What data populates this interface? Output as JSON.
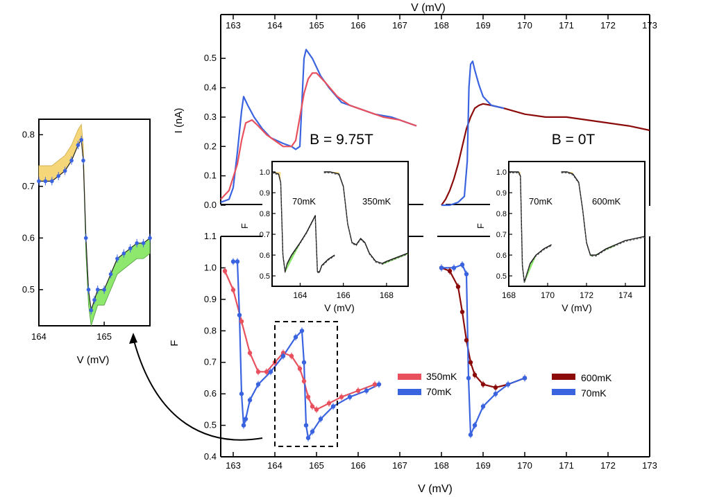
{
  "figure": {
    "top_xlabel": "V (mV)",
    "bottom_xlabel": "V (mV)",
    "top_ylabel": "I (nA)",
    "bottom_ylabel": "F",
    "zoom_xlabel": "V (mV)",
    "inset_xlabel": "V (mV)",
    "inset_ylabel": "F",
    "field_high": "B = 9.75T",
    "field_zero": "B = 0T",
    "inset_left_labels": [
      "70mK",
      "350mK"
    ],
    "inset_right_labels": [
      "70mK",
      "600mK"
    ],
    "legend_left": [
      "350mK",
      "70mK"
    ],
    "legend_right": [
      "600mK",
      "70mK"
    ],
    "colors": {
      "red": "#e8505e",
      "blue": "#3a63e0",
      "darkred": "#8b0a0a",
      "yellow": "#f5d77a",
      "green": "#8ee86e"
    }
  },
  "chart_data": [
    {
      "type": "line",
      "panel": "current",
      "xlabel": "V (mV)",
      "ylabel": "I (nA)",
      "xlim": [
        162.7,
        173
      ],
      "ylim": [
        0,
        0.55
      ],
      "xticks": [
        163,
        164,
        165,
        166,
        167,
        168,
        169,
        170,
        171,
        172,
        173
      ],
      "yticks": [
        0.0,
        0.1,
        0.2,
        0.3,
        0.4,
        0.5
      ],
      "series": [
        {
          "name": "70mK",
          "color": "blue",
          "x": [
            162.7,
            162.9,
            163.0,
            163.1,
            163.2,
            163.25,
            163.35,
            163.5,
            163.7,
            163.9,
            164.2,
            164.4,
            164.5,
            164.6,
            164.65,
            164.7,
            164.75,
            164.8,
            164.9,
            165.1,
            165.3,
            165.6,
            166.0,
            166.4,
            166.8,
            167.1,
            167.4
          ],
          "y": [
            0.01,
            0.02,
            0.06,
            0.18,
            0.32,
            0.37,
            0.34,
            0.3,
            0.26,
            0.23,
            0.21,
            0.2,
            0.19,
            0.2,
            0.35,
            0.5,
            0.53,
            0.52,
            0.5,
            0.44,
            0.4,
            0.35,
            0.33,
            0.31,
            0.3,
            0.285,
            0.27
          ]
        },
        {
          "name": "350mK",
          "color": "red",
          "x": [
            162.7,
            162.9,
            163.1,
            163.2,
            163.3,
            163.45,
            163.6,
            163.8,
            164.0,
            164.2,
            164.4,
            164.5,
            164.6,
            164.7,
            164.8,
            164.9,
            165.0,
            165.2,
            165.5,
            165.8,
            166.2,
            166.6,
            167.0,
            167.4
          ],
          "y": [
            0.02,
            0.05,
            0.14,
            0.22,
            0.28,
            0.29,
            0.27,
            0.24,
            0.22,
            0.2,
            0.2,
            0.22,
            0.3,
            0.38,
            0.43,
            0.45,
            0.45,
            0.42,
            0.37,
            0.34,
            0.32,
            0.3,
            0.29,
            0.27
          ]
        },
        {
          "name": "600mK",
          "color": "darkred",
          "x": [
            168.0,
            168.1,
            168.2,
            168.3,
            168.4,
            168.5,
            168.6,
            168.7,
            168.8,
            168.9,
            169.0,
            169.2,
            169.5,
            170.0,
            170.5,
            171.0,
            171.5,
            172.0,
            172.5,
            173.0
          ],
          "y": [
            0.0,
            0.02,
            0.05,
            0.09,
            0.14,
            0.2,
            0.26,
            0.3,
            0.33,
            0.34,
            0.345,
            0.34,
            0.33,
            0.31,
            0.3,
            0.3,
            0.29,
            0.28,
            0.27,
            0.255
          ]
        },
        {
          "name": "70mK",
          "color": "blue",
          "x": [
            168.0,
            168.2,
            168.4,
            168.55,
            168.62,
            168.66,
            168.7,
            168.75,
            168.8,
            168.9,
            169.0,
            169.2,
            169.5
          ],
          "y": [
            0.0,
            0.0,
            0.01,
            0.03,
            0.15,
            0.4,
            0.48,
            0.49,
            0.46,
            0.41,
            0.37,
            0.34,
            0.33
          ]
        }
      ]
    },
    {
      "type": "scatter",
      "panel": "fano",
      "xlabel": "V (mV)",
      "ylabel": "F",
      "xlim": [
        162.7,
        173
      ],
      "ylim": [
        0.4,
        1.1
      ],
      "xticks": [
        163,
        164,
        165,
        166,
        167,
        168,
        169,
        170,
        171,
        172,
        173
      ],
      "yticks": [
        0.4,
        0.5,
        0.6,
        0.7,
        0.8,
        0.9,
        1.0,
        1.1
      ],
      "series": [
        {
          "name": "350mK",
          "color": "red",
          "x": [
            162.8,
            163.0,
            163.2,
            163.4,
            163.6,
            163.8,
            164.0,
            164.2,
            164.4,
            164.6,
            164.7,
            164.8,
            164.9,
            165.0,
            165.3,
            165.6,
            166.0,
            166.4
          ],
          "y": [
            0.99,
            0.93,
            0.83,
            0.73,
            0.67,
            0.67,
            0.7,
            0.73,
            0.72,
            0.68,
            0.64,
            0.59,
            0.56,
            0.55,
            0.57,
            0.59,
            0.61,
            0.63
          ]
        },
        {
          "name": "70mK",
          "color": "blue",
          "x": [
            163.0,
            163.1,
            163.15,
            163.2,
            163.25,
            163.3,
            163.4,
            163.6,
            163.9,
            164.2,
            164.5,
            164.65,
            164.7,
            164.75,
            164.8,
            164.9,
            165.1,
            165.4,
            165.8,
            166.2,
            166.5
          ],
          "y": [
            1.02,
            1.02,
            0.85,
            0.6,
            0.5,
            0.52,
            0.58,
            0.63,
            0.67,
            0.72,
            0.78,
            0.8,
            0.7,
            0.5,
            0.46,
            0.48,
            0.52,
            0.56,
            0.59,
            0.61,
            0.63
          ]
        },
        {
          "name": "600mK",
          "color": "darkred",
          "x": [
            168.0,
            168.2,
            168.4,
            168.5,
            168.6,
            168.7,
            168.8,
            169.0,
            169.3,
            169.6,
            170.0
          ],
          "y": [
            1.0,
            0.99,
            0.94,
            0.86,
            0.77,
            0.7,
            0.66,
            0.63,
            0.62,
            0.63,
            0.65
          ]
        },
        {
          "name": "70mK",
          "color": "blue",
          "x": [
            168.0,
            168.3,
            168.5,
            168.6,
            168.65,
            168.7,
            168.8,
            169.0,
            169.3,
            169.6,
            170.0
          ],
          "y": [
            1.0,
            1.0,
            1.01,
            0.98,
            0.65,
            0.47,
            0.5,
            0.56,
            0.6,
            0.63,
            0.65
          ]
        }
      ]
    },
    {
      "type": "line",
      "panel": "zoom",
      "xlabel": "V (mV)",
      "xlim": [
        164,
        165.7
      ],
      "ylim": [
        0.43,
        0.83
      ],
      "xticks": [
        164,
        165
      ],
      "yticks": [
        0.5,
        0.6,
        0.7,
        0.8
      ],
      "series": [
        {
          "name": "70mK",
          "color": "blue",
          "x": [
            164.0,
            164.1,
            164.2,
            164.3,
            164.4,
            164.5,
            164.6,
            164.65,
            164.68,
            164.72,
            164.76,
            164.8,
            164.85,
            164.9,
            165.0,
            165.1,
            165.2,
            165.3,
            165.4,
            165.5,
            165.6,
            165.7
          ],
          "y": [
            0.71,
            0.71,
            0.71,
            0.72,
            0.73,
            0.75,
            0.78,
            0.79,
            0.75,
            0.6,
            0.5,
            0.46,
            0.48,
            0.5,
            0.5,
            0.53,
            0.56,
            0.57,
            0.58,
            0.59,
            0.59,
            0.6
          ]
        }
      ]
    },
    {
      "type": "line",
      "panel": "inset-9.75T",
      "xlabel": "V (mV)",
      "ylabel": "F",
      "xlim": [
        162.7,
        169
      ],
      "ylim": [
        0.45,
        1.05
      ],
      "xticks": [
        164,
        166,
        168
      ],
      "yticks": [
        0.5,
        0.6,
        0.7,
        0.8,
        0.9,
        1.0
      ],
      "series": [
        {
          "name": "70mK",
          "x": [
            162.7,
            163.0,
            163.1,
            163.2,
            163.3,
            163.4,
            163.6,
            164.0,
            164.3,
            164.6,
            164.7,
            164.8,
            164.9,
            165.0,
            165.3,
            165.6
          ],
          "y": [
            1.0,
            0.99,
            0.95,
            0.6,
            0.52,
            0.56,
            0.6,
            0.66,
            0.71,
            0.77,
            0.79,
            0.52,
            0.52,
            0.55,
            0.58,
            0.6
          ]
        },
        {
          "name": "350mK",
          "x": [
            165.1,
            165.4,
            165.8,
            166.0,
            166.2,
            166.4,
            166.6,
            166.8,
            167.0,
            167.2,
            167.5,
            167.8,
            168.0,
            168.5,
            169.0
          ],
          "y": [
            1.0,
            1.0,
            0.99,
            0.93,
            0.75,
            0.66,
            0.65,
            0.68,
            0.66,
            0.61,
            0.57,
            0.56,
            0.57,
            0.59,
            0.61
          ]
        }
      ]
    },
    {
      "type": "line",
      "panel": "inset-0T",
      "xlabel": "V (mV)",
      "ylabel": "F",
      "xlim": [
        168,
        175
      ],
      "ylim": [
        0.45,
        1.05
      ],
      "xticks": [
        168,
        170,
        172,
        174
      ],
      "yticks": [
        0.5,
        0.6,
        0.7,
        0.8,
        0.9,
        1.0
      ],
      "series": [
        {
          "name": "70mK",
          "x": [
            168.0,
            168.5,
            168.6,
            168.7,
            168.8,
            168.9,
            169.1,
            169.4,
            169.8,
            170.2
          ],
          "y": [
            1.0,
            1.0,
            0.98,
            0.55,
            0.47,
            0.5,
            0.56,
            0.6,
            0.63,
            0.65
          ]
        },
        {
          "name": "600mK",
          "x": [
            170.7,
            171.0,
            171.3,
            171.6,
            171.8,
            172.0,
            172.2,
            172.5,
            173.0,
            173.5,
            174.0,
            175.0
          ],
          "y": [
            1.0,
            1.0,
            0.99,
            0.95,
            0.82,
            0.66,
            0.6,
            0.6,
            0.63,
            0.65,
            0.67,
            0.69
          ]
        }
      ]
    }
  ]
}
